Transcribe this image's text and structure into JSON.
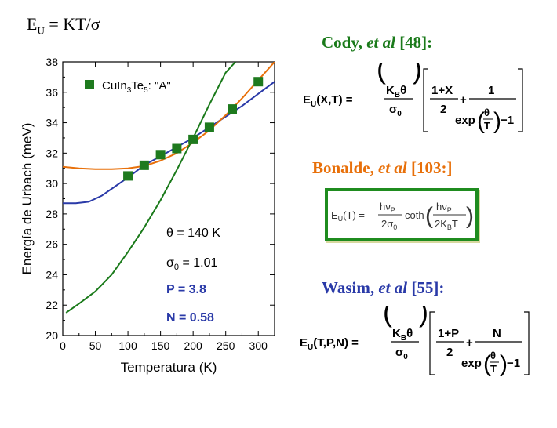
{
  "main_title": {
    "lhs": "E",
    "sub": "U",
    "rhs": " = KT/σ"
  },
  "references": {
    "cody": {
      "name": "Cody, ",
      "etal": "et al",
      "ref": " [48]:"
    },
    "bonalde": {
      "name": "Bonalde, ",
      "etal": "et al",
      "ref": " [103:]"
    },
    "wasim": {
      "name": "Wasim, ",
      "etal": "et al",
      "ref": " [55]:"
    }
  },
  "formulas": {
    "cody": {
      "lhs": "E",
      "lhs_sub": "U",
      "args": "(X,T) =",
      "kb": "K",
      "kb_sub": "B",
      "theta": "θ",
      "sigma": "σ",
      "sigma_sub": "0",
      "num1": "1+X",
      "den1": "2",
      "plus": "+",
      "num2": "1",
      "exp": "exp",
      "ratio_num": "θ",
      "ratio_den": "T",
      "minus1": "−1"
    },
    "bonalde": {
      "lhs": "E",
      "lhs_sub": "U",
      "args": "(T) =",
      "hv": "hν",
      "hv_sub": "P",
      "two_sigma": "2σ",
      "two_sigma_sub": "0",
      "coth": "coth",
      "two_kb_t": "2K",
      "two_kb_t_sub": "B",
      "t": "T"
    },
    "wasim": {
      "lhs": "E",
      "lhs_sub": "U",
      "args": "(T,P,N) =",
      "kb": "K",
      "kb_sub": "B",
      "theta": "θ",
      "sigma": "σ",
      "sigma_sub": "0",
      "num1": "1+P",
      "den1": "2",
      "plus": "+",
      "num2": "N",
      "exp": "exp",
      "ratio_num": "θ",
      "ratio_den": "T",
      "minus1": "−1"
    }
  },
  "annotations": {
    "theta": "θ = 140 K",
    "sigma": "σ",
    "sigma_sub": "0",
    "sigma_val": " = 1.01",
    "p": "P = 3.8",
    "n": "N = 0.58"
  },
  "colors": {
    "cody": "#1a7a1a",
    "bonalde": "#e8700a",
    "wasim": "#2a3aa8",
    "points": "#1e7a1e"
  },
  "chart_data": {
    "type": "scatter",
    "title": "",
    "xlabel": "Temperatura  (K)",
    "ylabel": "Energía de Urbach  (meV)",
    "xlim": [
      0,
      325
    ],
    "ylim": [
      20,
      38
    ],
    "xticks": [
      0,
      50,
      100,
      150,
      200,
      250,
      300
    ],
    "yticks": [
      20,
      22,
      24,
      26,
      28,
      30,
      32,
      34,
      36,
      38
    ],
    "legend": {
      "label": "CuIn",
      "sub1": "3",
      "mid": "Te",
      "sub2": "5",
      "tail": ": \"A\"",
      "placement": "top-left"
    },
    "points": {
      "x": [
        100,
        125,
        150,
        175,
        200,
        225,
        260,
        300
      ],
      "y": [
        30.5,
        31.2,
        31.9,
        32.3,
        32.9,
        33.7,
        34.9,
        36.7
      ]
    },
    "series": [
      {
        "color": "#2a3aa8",
        "x": [
          0,
          20,
          40,
          60,
          80,
          100,
          125,
          150,
          175,
          200,
          225,
          250,
          275,
          300,
          325
        ],
        "y": [
          28.7,
          28.7,
          28.8,
          29.2,
          29.8,
          30.4,
          31.2,
          31.8,
          32.4,
          33.0,
          33.7,
          34.4,
          35.1,
          35.9,
          36.7
        ]
      },
      {
        "color": "#e8700a",
        "x": [
          0,
          25,
          50,
          75,
          100,
          125,
          150,
          175,
          200,
          225,
          250,
          275,
          300,
          325
        ],
        "y": [
          31.1,
          31.0,
          30.95,
          30.95,
          31.0,
          31.15,
          31.5,
          32.0,
          32.7,
          33.5,
          34.5,
          35.6,
          36.8,
          38.0
        ]
      },
      {
        "color": "#1a7a1a",
        "x": [
          5,
          25,
          50,
          75,
          100,
          125,
          150,
          175,
          200,
          225,
          250,
          265
        ],
        "y": [
          21.5,
          22.1,
          22.9,
          24.0,
          25.5,
          27.1,
          28.9,
          30.9,
          33.0,
          35.2,
          37.3,
          38.0
        ]
      }
    ]
  }
}
